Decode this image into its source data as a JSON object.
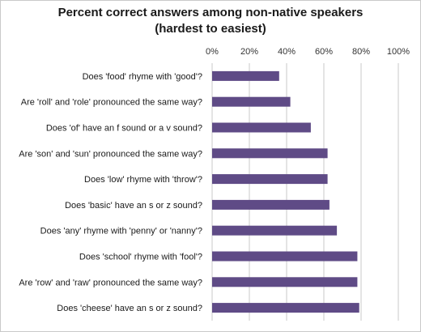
{
  "chart_data": {
    "type": "bar",
    "orientation": "horizontal",
    "title": "Percent correct answers among non-native speakers",
    "subtitle": "(hardest to easiest)",
    "categories": [
      "Does 'food' rhyme with 'good'?",
      "Are 'roll' and 'role' pronounced the same way?",
      "Does 'of' have an f sound or a v sound?",
      "Are 'son' and 'sun' pronounced the same way?",
      "Does 'low' rhyme with 'throw'?",
      "Does 'basic' have an s or z sound?",
      "Does 'any' rhyme with 'penny' or 'nanny'?",
      "Does 'school' rhyme with 'fool'?",
      "Are 'row' and 'raw' pronounced the same way?",
      "Does 'cheese' have an s or z sound?"
    ],
    "values": [
      36,
      42,
      53,
      62,
      62,
      63,
      67,
      78,
      78,
      79
    ],
    "xlim": [
      0,
      100
    ],
    "ticks": [
      0,
      20,
      40,
      60,
      80,
      100
    ],
    "tick_labels": [
      "0%",
      "20%",
      "40%",
      "60%",
      "80%",
      "100%"
    ],
    "tick_position": "top",
    "grid": true,
    "bar_color": "#5f4b86",
    "grid_color": "#c8c8c8"
  }
}
